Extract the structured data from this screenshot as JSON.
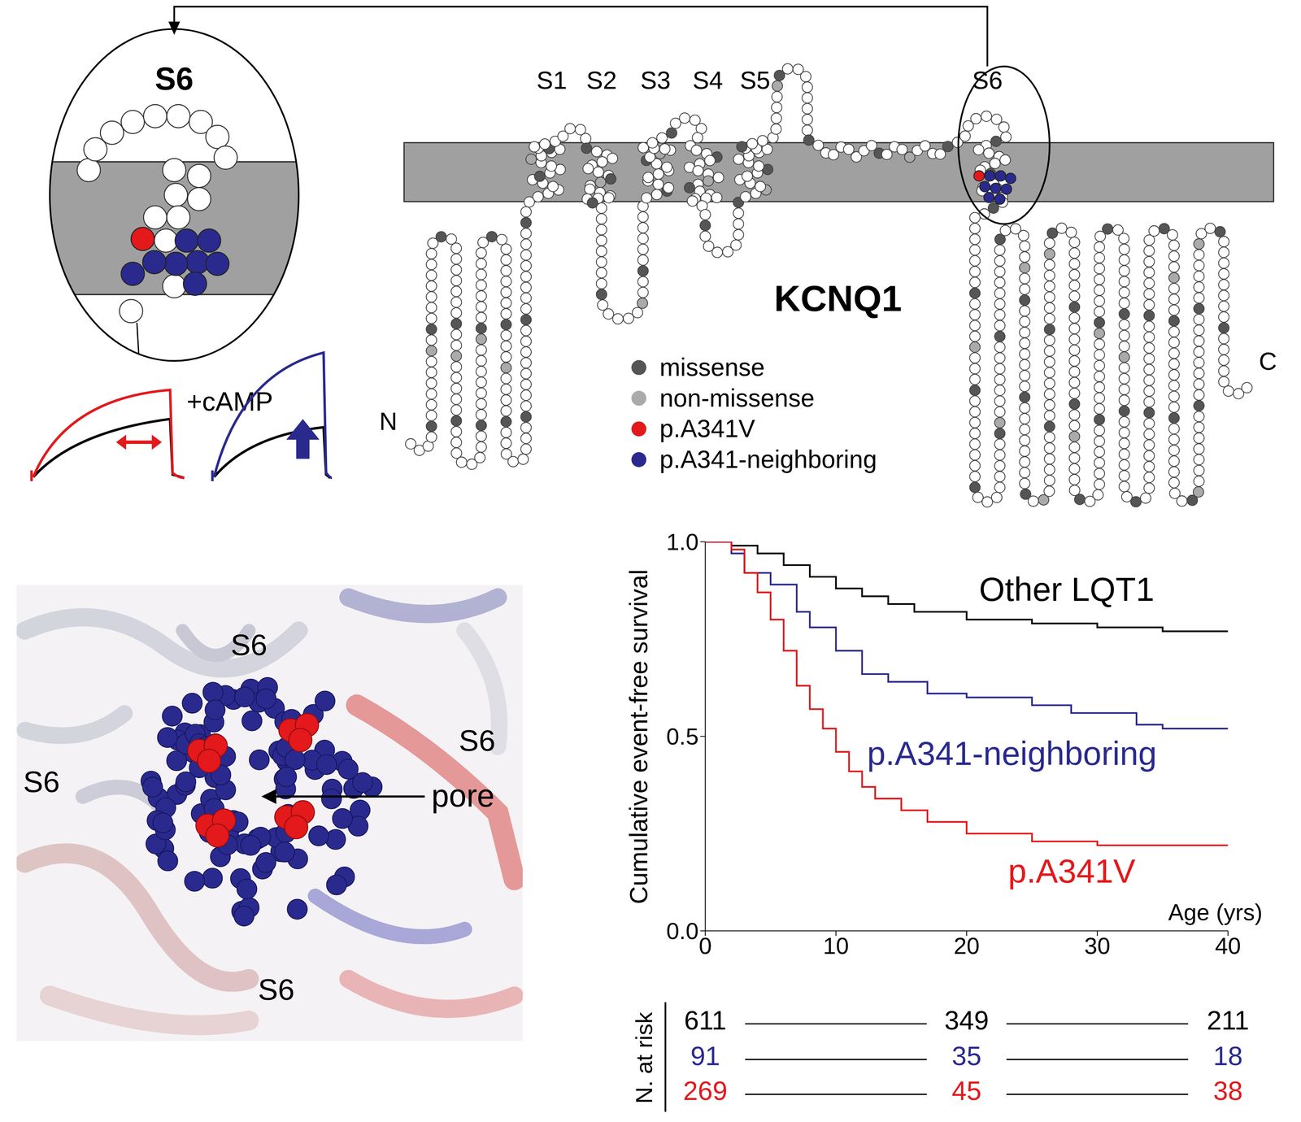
{
  "topology": {
    "title": "KCNQ1",
    "segments": [
      "S1",
      "S2",
      "S3",
      "S4",
      "S5",
      "S6"
    ],
    "termini": [
      "N",
      "C"
    ],
    "legend": [
      {
        "label": "missense",
        "color": "#555555"
      },
      {
        "label": "non-missense",
        "color": "#aaaaaa"
      },
      {
        "label": "p.A341V",
        "color": "#e3191c"
      },
      {
        "label": "p.A341-neighboring",
        "color": "#2a2a8e"
      }
    ]
  },
  "inset": {
    "title": "S6",
    "annotation": "+cAMP"
  },
  "structure": {
    "labels": [
      "S6",
      "S6",
      "S6",
      "S6"
    ],
    "pore_label": "pore"
  },
  "chart_data": {
    "type": "line",
    "line_style": "step",
    "x_label": "Age (yrs)",
    "y_label": "Cumulative event-free survival",
    "xlim": [
      0,
      40
    ],
    "ylim": [
      0,
      1
    ],
    "xticks": [
      0,
      10,
      20,
      30,
      40
    ],
    "yticks": [
      {
        "value": 0,
        "label": "0.0"
      },
      0.5,
      {
        "value": 1,
        "label": "1.0"
      }
    ],
    "n_at_risk_label": "N. at risk",
    "n_at_risk_x": [
      0,
      20,
      40
    ],
    "series": [
      {
        "name": "Other LQT1",
        "color": "#000000",
        "x": [
          0,
          2,
          4,
          6,
          8,
          10,
          12,
          14,
          16,
          20,
          25,
          30,
          35,
          40
        ],
        "values": [
          1.0,
          0.99,
          0.97,
          0.94,
          0.91,
          0.88,
          0.86,
          0.84,
          0.82,
          0.8,
          0.79,
          0.78,
          0.77,
          0.77
        ],
        "n_at_risk": [
          611,
          349,
          211
        ]
      },
      {
        "name": "p.A341-neighboring",
        "color": "#2a2a8e",
        "x": [
          0,
          2,
          3,
          5,
          7,
          8,
          10,
          12,
          14,
          17,
          20,
          25,
          28,
          33,
          35,
          40
        ],
        "values": [
          1.0,
          0.97,
          0.92,
          0.89,
          0.82,
          0.78,
          0.72,
          0.66,
          0.64,
          0.61,
          0.6,
          0.58,
          0.56,
          0.53,
          0.52,
          0.52
        ],
        "n_at_risk": [
          91,
          35,
          18
        ]
      },
      {
        "name": "p.A341V",
        "color": "#e3191c",
        "x": [
          0,
          2,
          3,
          4,
          5,
          6,
          7,
          8,
          9,
          10,
          11,
          12,
          13,
          15,
          17,
          20,
          25,
          30,
          40
        ],
        "values": [
          1.0,
          0.98,
          0.92,
          0.87,
          0.8,
          0.72,
          0.63,
          0.57,
          0.52,
          0.46,
          0.41,
          0.37,
          0.34,
          0.31,
          0.28,
          0.25,
          0.23,
          0.22,
          0.22
        ],
        "n_at_risk": [
          269,
          45,
          38
        ]
      }
    ]
  }
}
